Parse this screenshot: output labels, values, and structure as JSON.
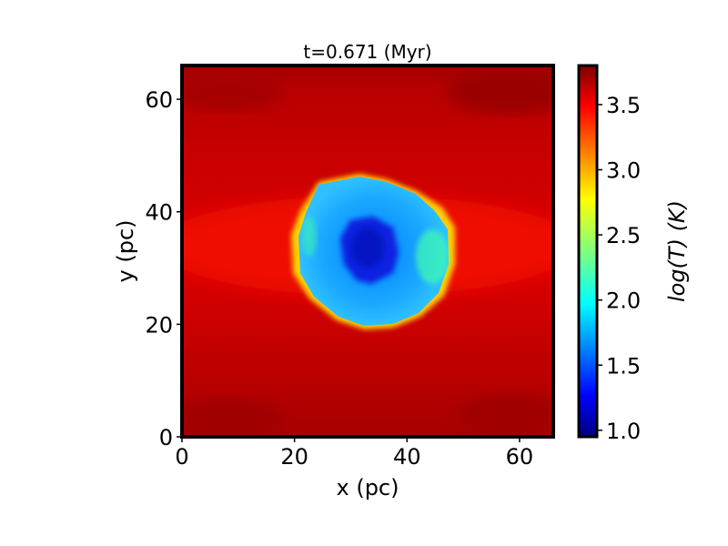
{
  "chart_data": {
    "type": "heatmap",
    "title": "t=0.671 (Myr)",
    "xlabel": "x (pc)",
    "ylabel": "y (pc)",
    "xlim": [
      0,
      66
    ],
    "ylim": [
      0,
      66
    ],
    "x_ticks": [
      0,
      20,
      40,
      60
    ],
    "y_ticks": [
      0,
      20,
      40,
      60
    ],
    "colorbar": {
      "label": "log(T) (K)",
      "colormap": "jet",
      "range": [
        0.95,
        3.8
      ],
      "ticks": [
        "1.0",
        "1.5",
        "2.0",
        "2.5",
        "3.0",
        "3.5"
      ]
    },
    "field": {
      "background_logT": 3.65,
      "shell_edge_logT": 2.7,
      "bubble_center": [
        33,
        33
      ],
      "bubble_logT": 1.85,
      "core_center": [
        33,
        34
      ],
      "core_logT": 1.3
    }
  }
}
